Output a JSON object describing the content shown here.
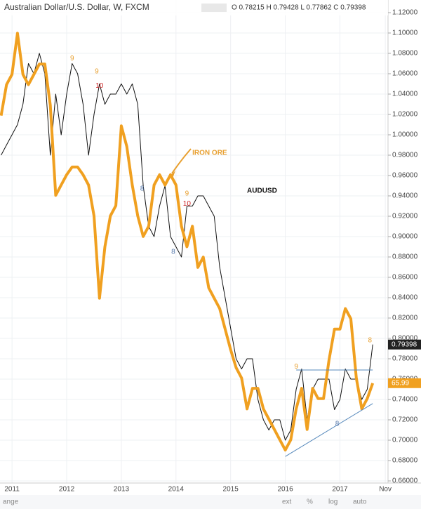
{
  "chart_data": {
    "type": "line",
    "title": "Australian Dollar/U.S. Dollar, W, FXCM",
    "subtitle": "O 0.78215 H 0.79428 L 0.77862 C 0.79398",
    "x": [
      2010.8,
      2010.9,
      2011.0,
      2011.1,
      2011.2,
      2011.3,
      2011.4,
      2011.5,
      2011.6,
      2011.7,
      2011.8,
      2011.9,
      2012.0,
      2012.1,
      2012.2,
      2012.3,
      2012.4,
      2012.5,
      2012.6,
      2012.7,
      2012.8,
      2012.9,
      2013.0,
      2013.1,
      2013.2,
      2013.3,
      2013.4,
      2013.5,
      2013.6,
      2013.7,
      2013.8,
      2013.9,
      2014.0,
      2014.1,
      2014.2,
      2014.3,
      2014.4,
      2014.5,
      2014.6,
      2014.7,
      2014.8,
      2014.9,
      2015.0,
      2015.1,
      2015.2,
      2015.3,
      2015.4,
      2015.5,
      2015.6,
      2015.7,
      2015.8,
      2015.9,
      2016.0,
      2016.1,
      2016.2,
      2016.3,
      2016.4,
      2016.5,
      2016.6,
      2016.7,
      2016.8,
      2016.9,
      2017.0,
      2017.1,
      2017.2,
      2017.3,
      2017.4,
      2017.5,
      2017.6
    ],
    "series": [
      {
        "name": "AUDUSD",
        "color": "#111111",
        "values": [
          0.98,
          0.99,
          1.0,
          1.01,
          1.03,
          1.07,
          1.06,
          1.08,
          1.06,
          0.98,
          1.04,
          1.0,
          1.04,
          1.07,
          1.06,
          1.03,
          0.98,
          1.02,
          1.05,
          1.03,
          1.04,
          1.04,
          1.05,
          1.04,
          1.05,
          1.03,
          0.95,
          0.91,
          0.9,
          0.93,
          0.95,
          0.9,
          0.89,
          0.88,
          0.93,
          0.93,
          0.94,
          0.94,
          0.93,
          0.92,
          0.87,
          0.84,
          0.81,
          0.78,
          0.77,
          0.78,
          0.78,
          0.74,
          0.72,
          0.71,
          0.72,
          0.72,
          0.7,
          0.71,
          0.75,
          0.77,
          0.72,
          0.75,
          0.76,
          0.76,
          0.76,
          0.73,
          0.74,
          0.77,
          0.76,
          0.76,
          0.74,
          0.75,
          0.79398
        ]
      },
      {
        "name": "IRON ORE",
        "color": "#f0a020",
        "axis": "y2",
        "values": [
          170,
          182,
          186,
          202,
          186,
          182,
          186,
          190,
          190,
          174,
          139,
          143,
          147,
          150,
          150,
          147,
          143,
          131,
          99,
          119,
          131,
          135,
          166,
          158,
          143,
          131,
          123,
          127,
          143,
          147,
          143,
          147,
          143,
          127,
          119,
          127,
          111,
          115,
          103,
          99,
          95,
          87,
          79,
          72,
          68,
          56,
          64,
          64,
          56,
          52,
          48,
          44,
          40,
          44,
          56,
          64,
          48,
          64,
          60,
          60,
          75,
          87,
          87,
          95,
          91,
          68,
          56,
          60,
          65.99
        ]
      }
    ],
    "xlim": [
      2010.78,
      2017.88
    ],
    "xticks": [
      2011,
      2012,
      2013,
      2014,
      2015,
      2016,
      2017,
      {
        "value": 2017.83,
        "label": "Nov"
      }
    ],
    "ylim": [
      0.66,
      1.12
    ],
    "y2lim": [
      28,
      210
    ],
    "yticks": [
      {
        "value": 0.66,
        "label": "0.66000"
      },
      {
        "value": 0.68,
        "label": "0.68000"
      },
      {
        "value": 0.7,
        "label": "0.70000"
      },
      {
        "value": 0.72,
        "label": "0.72000"
      },
      {
        "value": 0.74,
        "label": "0.74000"
      },
      {
        "value": 0.76,
        "label": "0.76000"
      },
      {
        "value": 0.78,
        "label": "0.78000"
      },
      {
        "value": 0.8,
        "label": "0.80000"
      },
      {
        "value": 0.82,
        "label": "0.82000"
      },
      {
        "value": 0.84,
        "label": "0.84000"
      },
      {
        "value": 0.86,
        "label": "0.86000"
      },
      {
        "value": 0.88,
        "label": "0.88000"
      },
      {
        "value": 0.9,
        "label": "0.90000"
      },
      {
        "value": 0.92,
        "label": "0.92000"
      },
      {
        "value": 0.94,
        "label": "0.94000"
      },
      {
        "value": 0.96,
        "label": "0.96000"
      },
      {
        "value": 0.98,
        "label": "0.98000"
      },
      {
        "value": 1.0,
        "label": "1.00000"
      },
      {
        "value": 1.02,
        "label": "1.02000"
      },
      {
        "value": 1.04,
        "label": "1.04000"
      },
      {
        "value": 1.06,
        "label": "1.06000"
      },
      {
        "value": 1.08,
        "label": "1.08000"
      },
      {
        "value": 1.1,
        "label": "1.10000"
      },
      {
        "value": 1.12,
        "label": "1.12000"
      }
    ],
    "grid": true,
    "annotations": [
      {
        "text": "IRON ORE",
        "x": 2014.3,
        "y": 0.982,
        "color": "#e8a030"
      },
      {
        "text": "AUDUSD",
        "x": 2015.3,
        "y": 0.945,
        "color": "#111111"
      }
    ],
    "markers": [
      {
        "text": "9",
        "x": 2012.1,
        "y": 1.075,
        "color": "#e8a030"
      },
      {
        "text": "9",
        "x": 2012.55,
        "y": 1.062,
        "color": "#e8a030"
      },
      {
        "text": "10",
        "x": 2012.6,
        "y": 1.048,
        "color": "#cc2222"
      },
      {
        "text": "8",
        "x": 2013.38,
        "y": 0.947,
        "color": "#5577aa"
      },
      {
        "text": "9",
        "x": 2014.2,
        "y": 0.942,
        "color": "#e8a030"
      },
      {
        "text": "10",
        "x": 2014.2,
        "y": 0.932,
        "color": "#cc2222"
      },
      {
        "text": "8",
        "x": 2013.95,
        "y": 0.885,
        "color": "#5577aa"
      },
      {
        "text": "9",
        "x": 2016.2,
        "y": 0.772,
        "color": "#e8a030"
      },
      {
        "text": "8",
        "x": 2016.95,
        "y": 0.716,
        "color": "#5577aa"
      },
      {
        "text": "8",
        "x": 2017.55,
        "y": 0.798,
        "color": "#e8a030"
      }
    ],
    "trendlines": [
      {
        "x": [
          2016.2,
          2017.6
        ],
        "y": [
          0.769,
          0.769
        ],
        "color": "#5588bb"
      },
      {
        "x": [
          2016.0,
          2017.6
        ],
        "y": [
          0.684,
          0.736
        ],
        "color": "#5588bb"
      }
    ]
  },
  "toolbar": [
    "ange",
    "ext",
    "%",
    "log",
    "auto"
  ]
}
